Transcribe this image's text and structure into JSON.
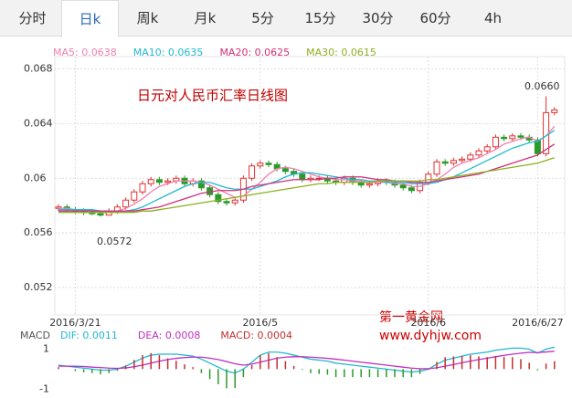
{
  "tabs": [
    "分时",
    "日k",
    "周k",
    "月k",
    "5分",
    "15分",
    "30分",
    "60分",
    "4h"
  ],
  "active_tab": 1,
  "annotations": [
    "0.0660",
    "0.0572"
  ],
  "watermark": [
    "第一黄金网",
    "www.dyhjw.com"
  ],
  "chart_data": [
    {
      "type": "candlestick",
      "title": "日元对人民币汇率日线图",
      "categories": [
        null,
        null,
        "2016/3/21",
        null,
        null,
        null,
        null,
        null,
        null,
        null,
        null,
        null,
        null,
        null,
        null,
        null,
        null,
        null,
        null,
        null,
        null,
        null,
        null,
        null,
        "2016/5",
        null,
        null,
        null,
        null,
        null,
        null,
        null,
        null,
        null,
        null,
        null,
        null,
        null,
        null,
        null,
        null,
        null,
        null,
        null,
        "2016/6",
        null,
        null,
        null,
        null,
        null,
        null,
        null,
        null,
        null,
        null,
        null,
        null,
        "2016/6/27",
        null,
        null
      ],
      "open": [
        0.0578,
        0.0579,
        0.0577,
        0.0576,
        0.0575,
        0.0574,
        0.0573,
        0.0576,
        0.0579,
        0.0584,
        0.059,
        0.0596,
        0.0599,
        0.0597,
        0.0598,
        0.06,
        0.0596,
        0.0598,
        0.0593,
        0.0588,
        0.0583,
        0.0582,
        0.0584,
        0.06,
        0.0609,
        0.0611,
        0.061,
        0.0607,
        0.0605,
        0.0603,
        0.0599,
        0.06,
        0.06,
        0.0598,
        0.0597,
        0.06,
        0.0597,
        0.0595,
        0.0596,
        0.0598,
        0.0597,
        0.0595,
        0.0593,
        0.0591,
        0.0597,
        0.0603,
        0.0612,
        0.0611,
        0.0613,
        0.0614,
        0.0617,
        0.062,
        0.0623,
        0.063,
        0.0629,
        0.0631,
        0.063,
        0.0628,
        0.0618,
        0.0648
      ],
      "high": [
        0.0581,
        0.0581,
        0.0579,
        0.0578,
        0.0577,
        0.0576,
        0.0578,
        0.0581,
        0.0586,
        0.0592,
        0.0598,
        0.0601,
        0.0601,
        0.06,
        0.0602,
        0.0602,
        0.06,
        0.06,
        0.0595,
        0.059,
        0.0585,
        0.0586,
        0.0602,
        0.0611,
        0.0613,
        0.0613,
        0.0612,
        0.0609,
        0.0607,
        0.0605,
        0.0602,
        0.0602,
        0.0602,
        0.06,
        0.0602,
        0.0602,
        0.0599,
        0.0598,
        0.06,
        0.06,
        0.0599,
        0.0597,
        0.0595,
        0.0599,
        0.0605,
        0.0614,
        0.0614,
        0.0615,
        0.0616,
        0.0619,
        0.0622,
        0.0625,
        0.0632,
        0.0632,
        0.0633,
        0.0633,
        0.0632,
        0.063,
        0.066,
        0.0652
      ],
      "low": [
        0.0576,
        0.0575,
        0.0574,
        0.0573,
        0.0573,
        0.0572,
        0.0573,
        0.0574,
        0.0577,
        0.0582,
        0.0588,
        0.0594,
        0.0595,
        0.0595,
        0.0596,
        0.0594,
        0.0594,
        0.0591,
        0.0586,
        0.0581,
        0.058,
        0.058,
        0.0582,
        0.0598,
        0.0607,
        0.0608,
        0.0605,
        0.0603,
        0.0601,
        0.0597,
        0.0597,
        0.0598,
        0.0596,
        0.0595,
        0.0595,
        0.0595,
        0.0593,
        0.0593,
        0.0594,
        0.0595,
        0.0593,
        0.0591,
        0.0589,
        0.0589,
        0.0595,
        0.0601,
        0.0609,
        0.0609,
        0.0611,
        0.0612,
        0.0615,
        0.0618,
        0.0621,
        0.0627,
        0.0627,
        0.0628,
        0.0626,
        0.0616,
        0.0616,
        0.0646
      ],
      "close": [
        0.0579,
        0.0577,
        0.0576,
        0.0575,
        0.0574,
        0.0573,
        0.0576,
        0.0579,
        0.0584,
        0.059,
        0.0596,
        0.0599,
        0.0597,
        0.0598,
        0.06,
        0.0596,
        0.0598,
        0.0593,
        0.0588,
        0.0583,
        0.0582,
        0.0584,
        0.06,
        0.0609,
        0.0611,
        0.061,
        0.0607,
        0.0605,
        0.0603,
        0.0599,
        0.06,
        0.06,
        0.0598,
        0.0597,
        0.06,
        0.0597,
        0.0595,
        0.0596,
        0.0598,
        0.0597,
        0.0595,
        0.0593,
        0.0591,
        0.0597,
        0.0603,
        0.0612,
        0.0611,
        0.0613,
        0.0614,
        0.0617,
        0.062,
        0.0623,
        0.063,
        0.0629,
        0.0631,
        0.063,
        0.0628,
        0.0618,
        0.0648,
        0.065
      ],
      "up_color": "#e03030",
      "down_color": "#2a9a2a",
      "series": [
        {
          "name": "MA5: 0.0638",
          "color": "#f080b0",
          "values": [
            0.0578,
            0.0578,
            0.0577,
            0.0577,
            0.0576,
            0.0575,
            0.0575,
            0.0576,
            0.0578,
            0.0581,
            0.0585,
            0.059,
            0.0594,
            0.0596,
            0.0598,
            0.0598,
            0.0598,
            0.0597,
            0.0595,
            0.0592,
            0.0589,
            0.0586,
            0.0587,
            0.0592,
            0.0597,
            0.0603,
            0.0607,
            0.0608,
            0.0607,
            0.0605,
            0.0603,
            0.0601,
            0.06,
            0.0599,
            0.0599,
            0.0598,
            0.0598,
            0.0597,
            0.0597,
            0.0597,
            0.0596,
            0.0596,
            0.0594,
            0.0594,
            0.0596,
            0.0599,
            0.0603,
            0.0608,
            0.0611,
            0.0613,
            0.0615,
            0.0618,
            0.0621,
            0.0625,
            0.0627,
            0.0629,
            0.063,
            0.0627,
            0.0631,
            0.0638
          ]
        },
        {
          "name": "MA10: 0.0635",
          "color": "#22b8d0",
          "values": [
            0.0577,
            0.0577,
            0.0577,
            0.0577,
            0.0577,
            0.0576,
            0.0576,
            0.0576,
            0.0576,
            0.0577,
            0.0579,
            0.0582,
            0.0585,
            0.0588,
            0.0591,
            0.0594,
            0.0596,
            0.0597,
            0.0597,
            0.0595,
            0.0593,
            0.0592,
            0.0592,
            0.0592,
            0.0594,
            0.0596,
            0.0598,
            0.0601,
            0.0603,
            0.0604,
            0.0604,
            0.0603,
            0.0602,
            0.0601,
            0.06,
            0.0599,
            0.0599,
            0.0598,
            0.0598,
            0.0597,
            0.0597,
            0.0597,
            0.0596,
            0.0596,
            0.0596,
            0.0597,
            0.0599,
            0.0601,
            0.0604,
            0.0607,
            0.061,
            0.0613,
            0.0616,
            0.0619,
            0.0622,
            0.0624,
            0.0626,
            0.0627,
            0.0631,
            0.0635
          ]
        },
        {
          "name": "MA20: 0.0625",
          "color": "#d0307a",
          "values": [
            0.0576,
            0.0576,
            0.0576,
            0.0576,
            0.0576,
            0.0576,
            0.0576,
            0.0576,
            0.0576,
            0.0576,
            0.0577,
            0.0578,
            0.0579,
            0.0581,
            0.0583,
            0.0585,
            0.0587,
            0.0589,
            0.059,
            0.0591,
            0.0591,
            0.0591,
            0.0592,
            0.0594,
            0.0595,
            0.0596,
            0.0597,
            0.0598,
            0.0599,
            0.0599,
            0.0599,
            0.0599,
            0.06,
            0.06,
            0.0601,
            0.0601,
            0.0601,
            0.06,
            0.0599,
            0.0599,
            0.0598,
            0.0598,
            0.0597,
            0.0597,
            0.0597,
            0.0598,
            0.0599,
            0.06,
            0.0601,
            0.0602,
            0.0603,
            0.0605,
            0.0607,
            0.0609,
            0.0611,
            0.0613,
            0.0615,
            0.0617,
            0.0621,
            0.0625
          ]
        },
        {
          "name": "MA30: 0.0615",
          "color": "#8cb020",
          "values": [
            0.0575,
            0.0575,
            0.0575,
            0.0575,
            0.0575,
            0.0575,
            0.0575,
            0.0575,
            0.0575,
            0.0575,
            0.0576,
            0.0576,
            0.0577,
            0.0578,
            0.0579,
            0.058,
            0.0581,
            0.0582,
            0.0583,
            0.0584,
            0.0585,
            0.0586,
            0.0587,
            0.0588,
            0.0589,
            0.059,
            0.0591,
            0.0592,
            0.0593,
            0.0594,
            0.0595,
            0.0596,
            0.0596,
            0.0597,
            0.0597,
            0.0597,
            0.0597,
            0.0597,
            0.0598,
            0.0598,
            0.0598,
            0.0598,
            0.0598,
            0.0598,
            0.0599,
            0.0599,
            0.06,
            0.0601,
            0.0602,
            0.0603,
            0.0604,
            0.0605,
            0.0606,
            0.0607,
            0.0608,
            0.0609,
            0.061,
            0.0611,
            0.0613,
            0.0615
          ]
        }
      ],
      "ylim": [
        0.05,
        0.0689
      ],
      "yticks": [
        0.052,
        0.056,
        0.06,
        0.064,
        0.068
      ],
      "grid": true
    },
    {
      "type": "macd",
      "label": "MACD",
      "series": [
        {
          "name": "DIF: 0.0011",
          "color": "#22b8d0",
          "kind": "line",
          "values": [
            0.2,
            0.15,
            0.1,
            0.05,
            0,
            -0.05,
            -0.05,
            0,
            0.15,
            0.35,
            0.55,
            0.7,
            0.75,
            0.75,
            0.75,
            0.7,
            0.65,
            0.5,
            0.3,
            0.1,
            -0.1,
            -0.2,
            0,
            0.35,
            0.7,
            0.85,
            0.85,
            0.8,
            0.7,
            0.6,
            0.5,
            0.45,
            0.4,
            0.3,
            0.25,
            0.2,
            0.15,
            0.1,
            0.05,
            0,
            -0.05,
            -0.1,
            -0.15,
            -0.1,
            0,
            0.25,
            0.45,
            0.55,
            0.65,
            0.75,
            0.8,
            0.85,
            0.95,
            1.0,
            1.05,
            1.05,
            1.0,
            0.8,
            1.0,
            1.1
          ]
        },
        {
          "name": "DEA: 0.0008",
          "color": "#c030c0",
          "kind": "line",
          "values": [
            0.15,
            0.15,
            0.15,
            0.13,
            0.1,
            0.08,
            0.05,
            0.04,
            0.06,
            0.12,
            0.2,
            0.3,
            0.4,
            0.48,
            0.54,
            0.58,
            0.6,
            0.6,
            0.55,
            0.48,
            0.38,
            0.27,
            0.2,
            0.25,
            0.35,
            0.45,
            0.55,
            0.6,
            0.62,
            0.62,
            0.6,
            0.57,
            0.54,
            0.5,
            0.45,
            0.4,
            0.35,
            0.3,
            0.25,
            0.2,
            0.15,
            0.1,
            0.05,
            0.02,
            0.02,
            0.07,
            0.15,
            0.23,
            0.32,
            0.4,
            0.48,
            0.55,
            0.62,
            0.69,
            0.75,
            0.8,
            0.84,
            0.83,
            0.86,
            0.9
          ]
        },
        {
          "name": "MACD: 0.0004",
          "color": "#c03030",
          "neg_color": "#2a9a2a",
          "kind": "bar",
          "values": [
            0.1,
            0,
            -0.1,
            -0.16,
            -0.2,
            -0.26,
            -0.2,
            -0.08,
            0.18,
            0.46,
            0.7,
            0.8,
            0.7,
            0.54,
            0.42,
            0.24,
            0.1,
            -0.2,
            -0.5,
            -0.76,
            -0.96,
            -0.94,
            -0.4,
            0.2,
            0.7,
            0.8,
            0.6,
            0.4,
            0.16,
            -0.04,
            -0.2,
            -0.24,
            -0.28,
            -0.4,
            -0.4,
            -0.4,
            -0.4,
            -0.4,
            -0.4,
            -0.4,
            -0.4,
            -0.4,
            -0.4,
            -0.24,
            -0.04,
            0.36,
            0.6,
            0.64,
            0.66,
            0.7,
            0.64,
            0.6,
            0.66,
            0.62,
            0.6,
            0.5,
            0.32,
            -0.06,
            0.28,
            0.4
          ]
        }
      ],
      "ylim": [
        -1.4,
        1.8
      ],
      "yticks": [
        -1,
        1
      ]
    }
  ]
}
